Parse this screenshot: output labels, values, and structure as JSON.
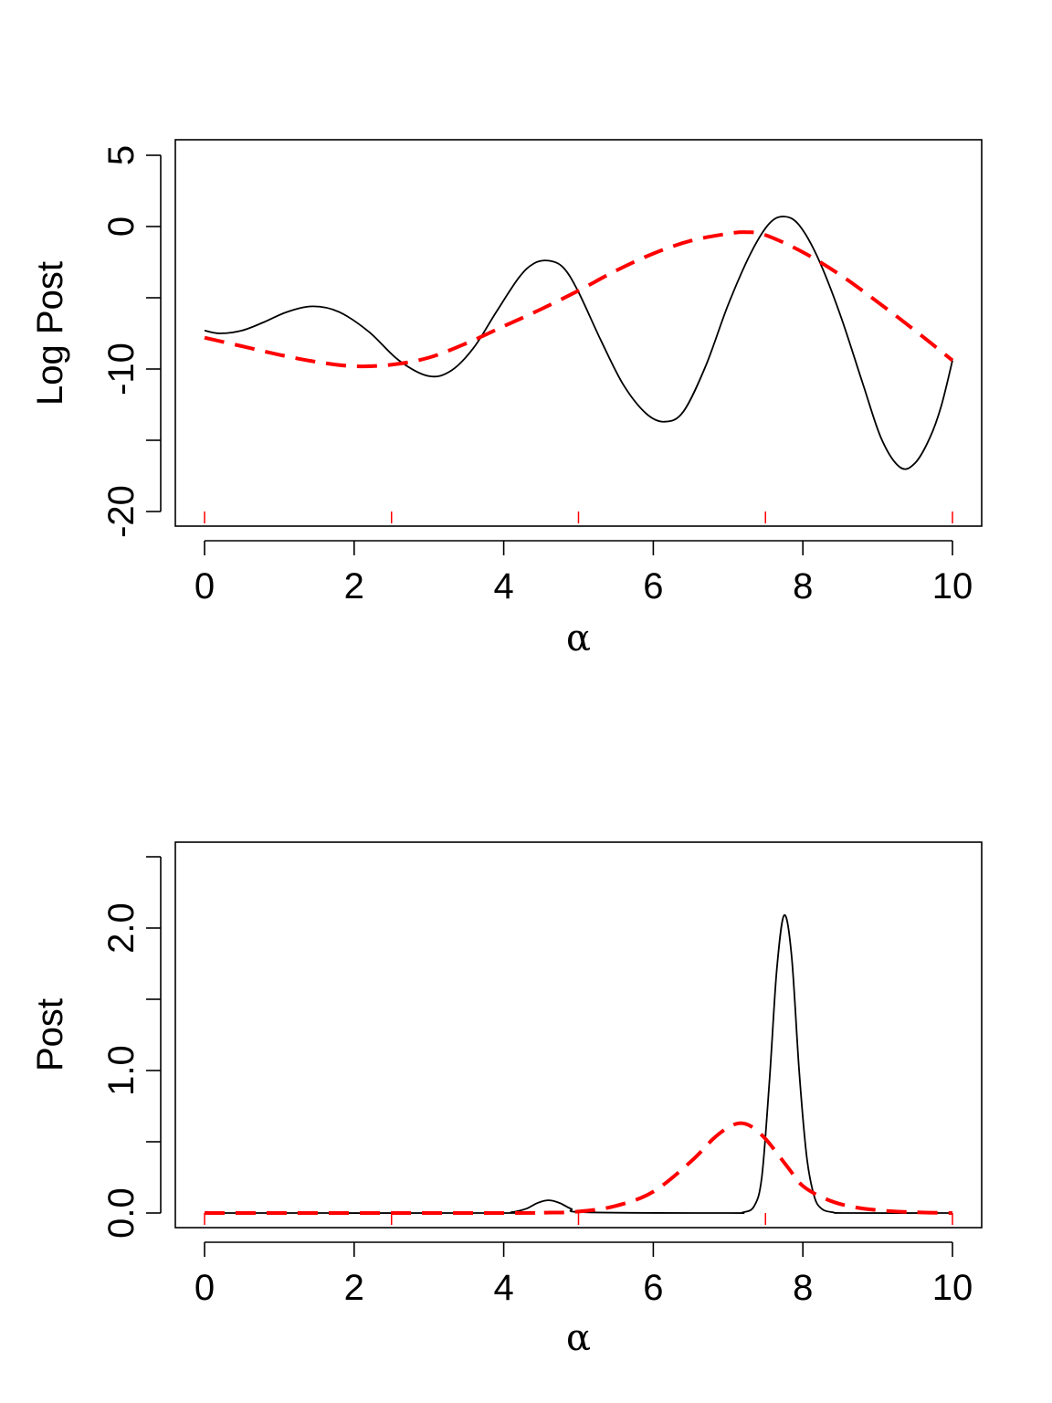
{
  "chart_data": [
    {
      "type": "line",
      "ylabel": "Log Post",
      "xlabel": "α",
      "xlim": [
        0,
        10
      ],
      "ylim": [
        -20,
        5
      ],
      "xticks": [
        "0",
        "2",
        "4",
        "6",
        "8",
        "10"
      ],
      "yticks": [
        "-20",
        "-15",
        "-10",
        "-5",
        "0",
        "5"
      ],
      "yticks_labeled": [
        "-20",
        "-10",
        "0",
        "5"
      ],
      "rug": [
        0,
        2.5,
        5,
        7.5,
        10
      ],
      "series": [
        {
          "style": "solid",
          "color": "#000000",
          "x": [
            0,
            0.2,
            0.5,
            0.8,
            1.1,
            1.45,
            1.8,
            2.2,
            2.6,
            3.0,
            3.3,
            3.6,
            3.9,
            4.2,
            4.4,
            4.6,
            4.8,
            5.0,
            5.3,
            5.6,
            5.9,
            6.15,
            6.4,
            6.7,
            7.0,
            7.3,
            7.55,
            7.75,
            7.95,
            8.2,
            8.5,
            8.8,
            9.05,
            9.3,
            9.5,
            9.7,
            9.85,
            10
          ],
          "y": [
            -7.3,
            -7.5,
            -7.3,
            -6.7,
            -6.0,
            -5.6,
            -6.0,
            -7.4,
            -9.4,
            -10.5,
            -10.1,
            -8.5,
            -6.0,
            -3.6,
            -2.6,
            -2.4,
            -2.9,
            -4.6,
            -8.0,
            -11.1,
            -13.1,
            -13.7,
            -13.0,
            -9.8,
            -5.5,
            -1.9,
            0.2,
            0.7,
            0.1,
            -2.2,
            -6.2,
            -11.0,
            -14.9,
            -16.9,
            -16.6,
            -14.8,
            -12.6,
            -9.4
          ]
        },
        {
          "style": "dashed",
          "color": "#ff0000",
          "x": [
            0,
            0.5,
            1.0,
            1.5,
            2.0,
            2.5,
            3.0,
            3.5,
            4.0,
            4.5,
            5.0,
            5.5,
            6.0,
            6.5,
            7.0,
            7.25,
            7.5,
            8.0,
            8.5,
            9.0,
            9.5,
            10
          ],
          "y": [
            -7.8,
            -8.4,
            -9.0,
            -9.5,
            -9.8,
            -9.7,
            -9.2,
            -8.2,
            -7.0,
            -5.8,
            -4.5,
            -3.1,
            -1.9,
            -1.0,
            -0.5,
            -0.4,
            -0.6,
            -1.8,
            -3.4,
            -5.3,
            -7.3,
            -9.4
          ]
        }
      ]
    },
    {
      "type": "line",
      "ylabel": "Post",
      "xlabel": "α",
      "xlim": [
        0,
        10
      ],
      "ylim": [
        0,
        2.5
      ],
      "xticks": [
        "0",
        "2",
        "4",
        "6",
        "8",
        "10"
      ],
      "yticks": [
        "0.0",
        "0.5",
        "1.0",
        "1.5",
        "2.0",
        "2.5"
      ],
      "yticks_labeled": [
        "0.0",
        "1.0",
        "2.0"
      ],
      "rug": [
        0,
        2.5,
        5,
        7.5,
        10
      ],
      "series": [
        {
          "style": "solid",
          "color": "#000000",
          "x": [
            0,
            3.9,
            4.1,
            4.3,
            4.45,
            4.6,
            4.75,
            4.9,
            5.1,
            7.0,
            7.2,
            7.35,
            7.45,
            7.55,
            7.65,
            7.75,
            7.85,
            7.95,
            8.05,
            8.15,
            8.25,
            8.4,
            8.6,
            10
          ],
          "y": [
            0,
            0,
            0.005,
            0.03,
            0.07,
            0.09,
            0.07,
            0.03,
            0.005,
            0,
            0.005,
            0.05,
            0.25,
            0.9,
            1.7,
            2.09,
            1.8,
            1.0,
            0.4,
            0.12,
            0.03,
            0.005,
            0,
            0
          ]
        },
        {
          "style": "dashed",
          "color": "#ff0000",
          "x": [
            0,
            4.0,
            4.5,
            5.0,
            5.5,
            6.0,
            6.5,
            6.8,
            7.0,
            7.15,
            7.3,
            7.5,
            7.8,
            8.0,
            8.3,
            8.6,
            9.0,
            9.5,
            10
          ],
          "y": [
            0,
            0,
            0.002,
            0.01,
            0.05,
            0.15,
            0.36,
            0.52,
            0.6,
            0.63,
            0.61,
            0.52,
            0.32,
            0.19,
            0.1,
            0.05,
            0.02,
            0.005,
            0
          ]
        }
      ]
    }
  ]
}
